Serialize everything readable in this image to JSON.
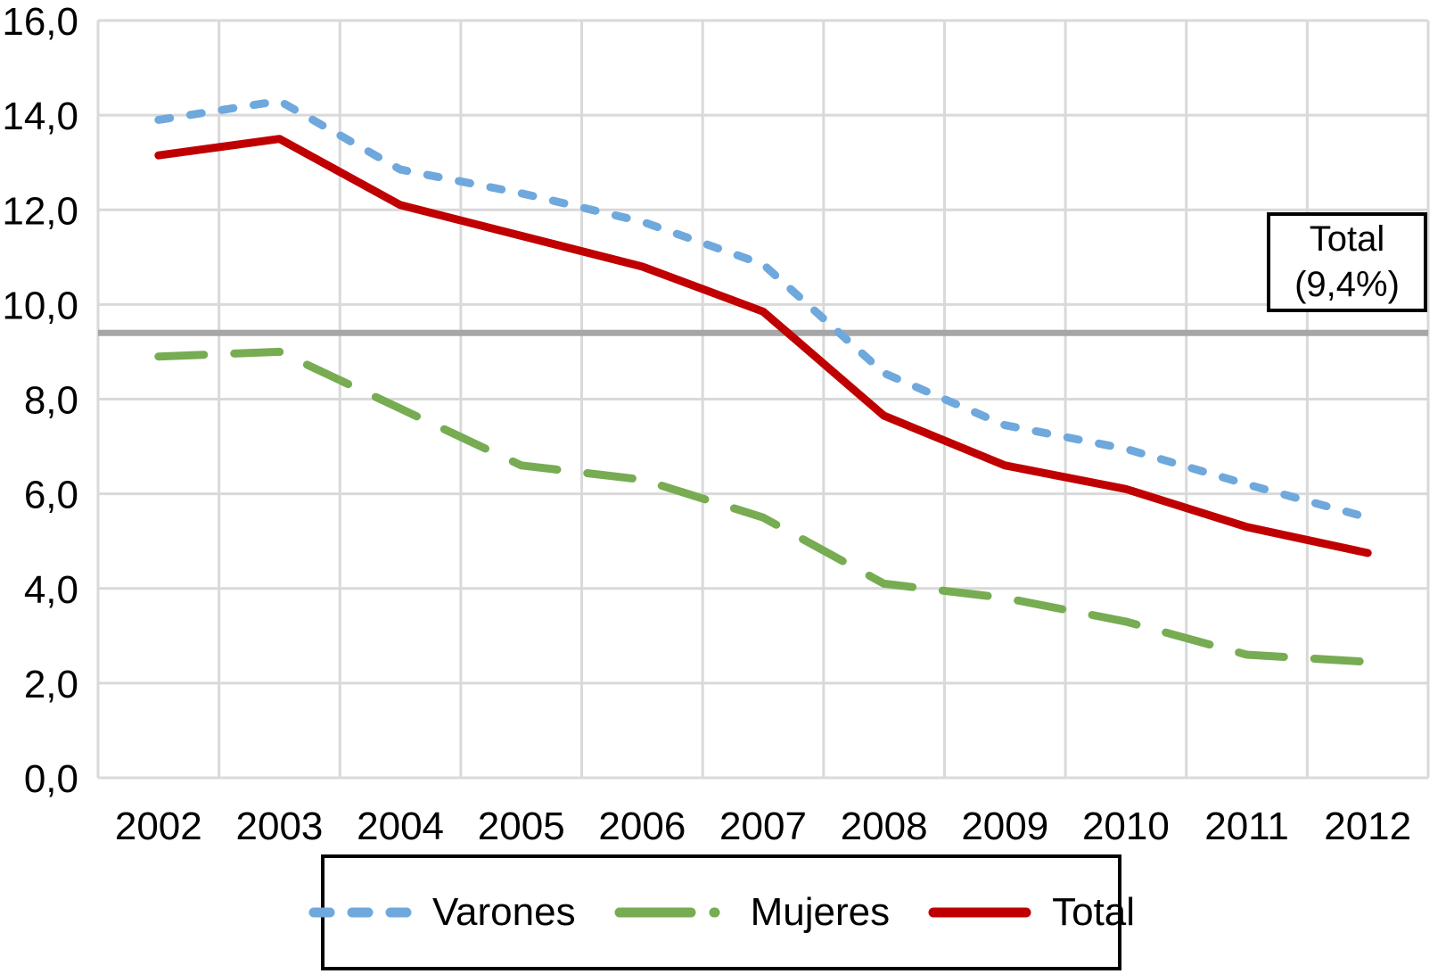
{
  "page": {
    "background": "#ffffff"
  },
  "annotation": {
    "line1": "Total",
    "line2": "(9,4%)"
  },
  "legend": {
    "items": [
      {
        "label": "Varones"
      },
      {
        "label": "Mujeres"
      },
      {
        "label": "Total"
      }
    ]
  },
  "chart_data": {
    "type": "line",
    "title": "",
    "xlabel": "",
    "ylabel": "",
    "categories": [
      "2002",
      "2003",
      "2004",
      "2005",
      "2006",
      "2007",
      "2008",
      "2009",
      "2010",
      "2011",
      "2012"
    ],
    "series": [
      {
        "name": "Varones",
        "color": "#6FA8DC",
        "style": "dashed-short",
        "values": [
          13.9,
          14.3,
          12.85,
          12.35,
          11.75,
          10.85,
          8.55,
          7.45,
          6.95,
          6.2,
          5.5
        ]
      },
      {
        "name": "Mujeres",
        "color": "#77AC52",
        "style": "dashed-long",
        "values": [
          8.9,
          9.0,
          7.8,
          6.6,
          6.3,
          5.5,
          4.1,
          3.8,
          3.3,
          2.6,
          2.45
        ]
      },
      {
        "name": "Total",
        "color": "#C00000",
        "style": "solid",
        "values": [
          13.15,
          13.5,
          12.1,
          11.45,
          10.8,
          9.85,
          7.65,
          6.6,
          6.1,
          5.3,
          4.75
        ]
      }
    ],
    "reference_line": {
      "value": 9.4,
      "color": "#A6A6A6",
      "label": "Total (9,4%)"
    },
    "ylim": [
      0,
      16
    ],
    "y_ticks": {
      "values": [
        16,
        14,
        12,
        10,
        8,
        6,
        4,
        2,
        0
      ],
      "labels": [
        "16,0",
        "14,0",
        "12,0",
        "10,0",
        "8,0",
        "6,0",
        "4,0",
        "2,0",
        "0,0"
      ]
    },
    "grid": true,
    "gridline_color": "#D9D9D9",
    "legend_position": "bottom",
    "decimal_separator": ","
  }
}
